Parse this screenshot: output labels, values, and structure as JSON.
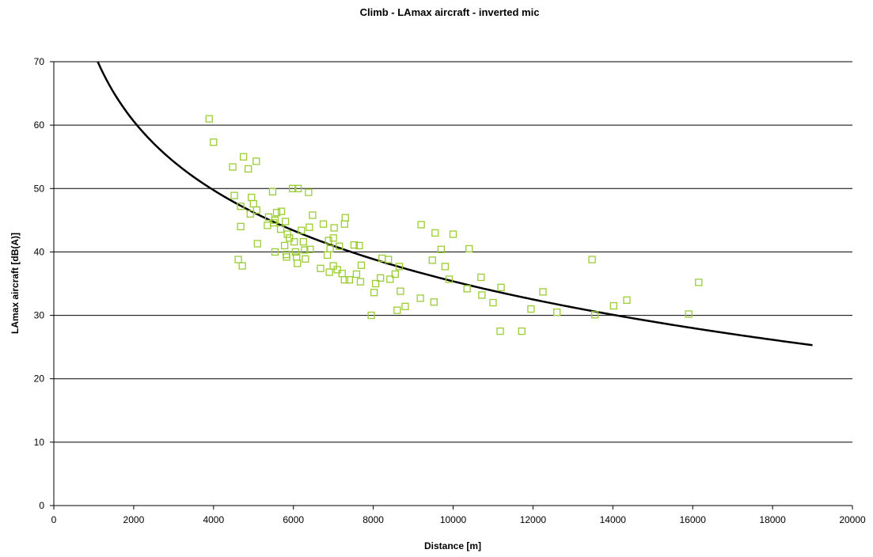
{
  "chart_data": {
    "type": "scatter",
    "title": "Climb - LAmax aircraft - inverted mic",
    "xlabel": "Distance [m]",
    "ylabel": "LAmax aircraft [dB(A)]",
    "xlim": [
      0,
      20000
    ],
    "ylim": [
      0,
      70
    ],
    "xticks": [
      0,
      2000,
      4000,
      6000,
      8000,
      10000,
      12000,
      14000,
      16000,
      18000,
      20000
    ],
    "yticks": [
      0,
      10,
      20,
      30,
      40,
      50,
      60,
      70
    ],
    "grid": {
      "horizontal": true,
      "vertical": false
    },
    "legend": "none",
    "colors": {
      "points": "#9acd32",
      "curve": "#000000",
      "grid": "#000000"
    },
    "series": [
      {
        "kind": "scatter",
        "marker": "open-square",
        "points": [
          [
            3890,
            61.0
          ],
          [
            4000,
            57.3
          ],
          [
            4480,
            53.4
          ],
          [
            4750,
            55.0
          ],
          [
            4870,
            53.1
          ],
          [
            5070,
            54.3
          ],
          [
            4520,
            48.9
          ],
          [
            4680,
            47.2
          ],
          [
            4950,
            48.6
          ],
          [
            5000,
            47.6
          ],
          [
            5080,
            46.6
          ],
          [
            4920,
            46.0
          ],
          [
            5480,
            49.5
          ],
          [
            5980,
            50.0
          ],
          [
            6120,
            50.0
          ],
          [
            6380,
            49.4
          ],
          [
            4680,
            44.0
          ],
          [
            4620,
            38.8
          ],
          [
            4720,
            37.8
          ],
          [
            5100,
            41.3
          ],
          [
            5380,
            45.5
          ],
          [
            5540,
            45.0
          ],
          [
            5580,
            46.2
          ],
          [
            5700,
            46.4
          ],
          [
            5800,
            44.8
          ],
          [
            5350,
            44.2
          ],
          [
            5500,
            44.6
          ],
          [
            5680,
            43.6
          ],
          [
            5850,
            42.8
          ],
          [
            5900,
            42.2
          ],
          [
            5780,
            41.0
          ],
          [
            6020,
            41.6
          ],
          [
            6200,
            43.4
          ],
          [
            6250,
            41.6
          ],
          [
            6400,
            43.9
          ],
          [
            6480,
            45.8
          ],
          [
            5540,
            40.0
          ],
          [
            5820,
            39.6
          ],
          [
            5830,
            39.2
          ],
          [
            6050,
            40.0
          ],
          [
            6080,
            39.2
          ],
          [
            6100,
            38.2
          ],
          [
            6280,
            40.3
          ],
          [
            6300,
            38.9
          ],
          [
            6420,
            40.4
          ],
          [
            6680,
            37.4
          ],
          [
            6750,
            44.4
          ],
          [
            6880,
            41.8
          ],
          [
            6920,
            40.5
          ],
          [
            6850,
            39.5
          ],
          [
            6900,
            36.8
          ],
          [
            7000,
            42.2
          ],
          [
            7020,
            43.8
          ],
          [
            7000,
            37.8
          ],
          [
            7100,
            37.2
          ],
          [
            7150,
            40.9
          ],
          [
            7220,
            36.6
          ],
          [
            7280,
            44.4
          ],
          [
            7300,
            45.4
          ],
          [
            7280,
            35.6
          ],
          [
            7400,
            35.6
          ],
          [
            7520,
            41.1
          ],
          [
            7580,
            36.5
          ],
          [
            7650,
            41.0
          ],
          [
            7680,
            35.3
          ],
          [
            7700,
            37.9
          ],
          [
            7950,
            30.0
          ],
          [
            8020,
            33.6
          ],
          [
            8060,
            35.0
          ],
          [
            8180,
            35.9
          ],
          [
            8220,
            39.0
          ],
          [
            8380,
            38.8
          ],
          [
            8420,
            35.7
          ],
          [
            8550,
            36.5
          ],
          [
            8650,
            37.7
          ],
          [
            8600,
            30.8
          ],
          [
            8680,
            33.8
          ],
          [
            8800,
            31.4
          ],
          [
            9200,
            44.3
          ],
          [
            9180,
            32.7
          ],
          [
            9480,
            38.7
          ],
          [
            9520,
            32.1
          ],
          [
            9550,
            43.0
          ],
          [
            9700,
            40.4
          ],
          [
            9800,
            37.7
          ],
          [
            9900,
            35.7
          ],
          [
            10000,
            42.8
          ],
          [
            10350,
            34.2
          ],
          [
            10400,
            40.5
          ],
          [
            10700,
            36.0
          ],
          [
            10720,
            33.2
          ],
          [
            11000,
            32.0
          ],
          [
            11180,
            27.5
          ],
          [
            11200,
            34.4
          ],
          [
            11720,
            27.5
          ],
          [
            11950,
            31.0
          ],
          [
            12250,
            33.7
          ],
          [
            12600,
            30.5
          ],
          [
            13480,
            38.8
          ],
          [
            13550,
            30.1
          ],
          [
            14020,
            31.5
          ],
          [
            14350,
            32.4
          ],
          [
            15900,
            30.2
          ],
          [
            16150,
            35.2
          ]
        ]
      },
      {
        "kind": "fit-line",
        "equation": "y = -19.7 ln(x) + 219.3",
        "x_range": [
          1100,
          19000
        ]
      }
    ]
  }
}
